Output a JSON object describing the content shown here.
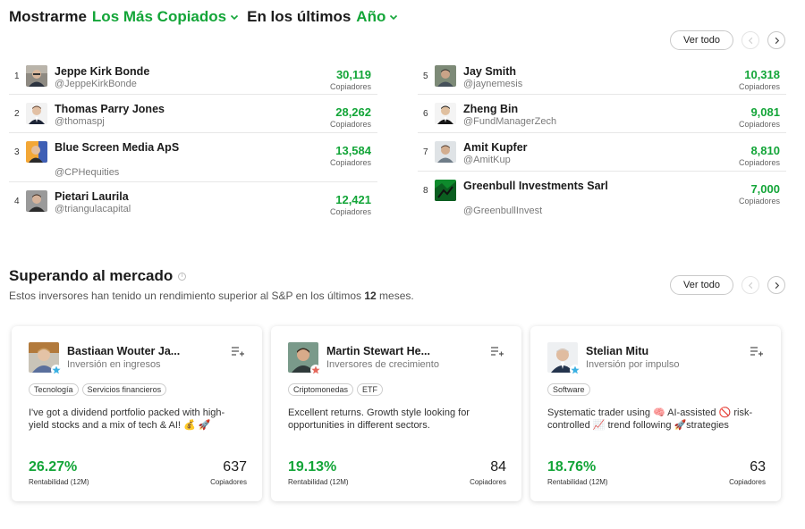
{
  "header": {
    "prefix": "Mostrarme",
    "filter": "Los Más Copiados",
    "middle": "En los últimos",
    "period": "Año"
  },
  "top_section": {
    "see_all": "Ver todo"
  },
  "count_label": "Copiadores",
  "left_list": [
    {
      "rank": "1",
      "name": "Jeppe Kirk Bonde",
      "handle": "@JeppeKirkBonde",
      "count": "30,119"
    },
    {
      "rank": "2",
      "name": "Thomas Parry Jones",
      "handle": "@thomaspj",
      "count": "28,262"
    },
    {
      "rank": "3",
      "name": "Blue Screen Media ApS",
      "handle": "@CPHequities",
      "count": "13,584"
    },
    {
      "rank": "4",
      "name": "Pietari Laurila",
      "handle": "@triangulacapital",
      "count": "12,421"
    }
  ],
  "right_list": [
    {
      "rank": "5",
      "name": "Jay Smith",
      "handle": "@jaynemesis",
      "count": "10,318"
    },
    {
      "rank": "6",
      "name": "Zheng Bin",
      "handle": "@FundManagerZech",
      "count": "9,081"
    },
    {
      "rank": "7",
      "name": "Amit Kupfer",
      "handle": "@AmitKup",
      "count": "8,810"
    },
    {
      "rank": "8",
      "name": "Greenbull Investments Sarl",
      "handle": "@GreenbullInvest",
      "count": "7,000"
    }
  ],
  "section2": {
    "title": "Superando al mercado",
    "info_icon": "info-icon",
    "subtitle_pre": "Estos inversores han tenido un rendimiento superior al S&P en los últimos ",
    "subtitle_num": "12",
    "subtitle_post": " meses.",
    "see_all": "Ver todo"
  },
  "return_label": "Rentabilidad (12M)",
  "copiers_label": "Copiadores",
  "cards": [
    {
      "name": "Bastiaan Wouter Ja...",
      "category": "Inversión en ingresos",
      "tags": [
        "Tecnología",
        "Servicios financieros"
      ],
      "description": "I've got a dividend portfolio packed with high-yield stocks and a mix of tech & AI! 💰 🚀",
      "return": "26.27%",
      "copiers": "637",
      "star_color": "#3ab0e2"
    },
    {
      "name": "Martin Stewart He...",
      "category": "Inversores de crecimiento",
      "tags": [
        "Criptomonedas",
        "ETF"
      ],
      "description": "Excellent returns. Growth style looking for opportunities in different sectors.",
      "return": "19.13%",
      "copiers": "84",
      "star_color": "#e5675a"
    },
    {
      "name": "Stelian Mitu",
      "category": "Inversión por impulso",
      "tags": [
        "Software"
      ],
      "description": "Systematic trader using 🧠 AI-assisted 🚫 risk-controlled 📈 trend following 🚀strategies",
      "return": "18.76%",
      "copiers": "63",
      "star_color": "#3ab0e2"
    }
  ],
  "colors": {
    "accent_green": "#13a538",
    "text_dark": "#1b1b1b"
  }
}
